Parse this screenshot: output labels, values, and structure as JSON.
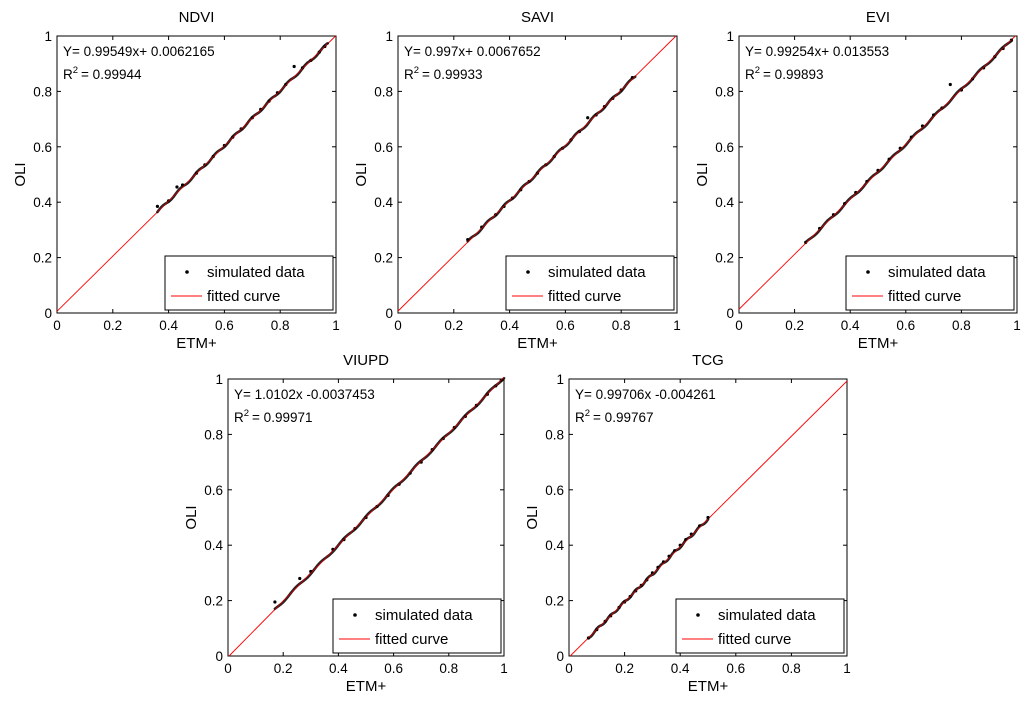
{
  "chart_data": [
    {
      "type": "scatter",
      "title": "NDVI",
      "xlabel": "ETM+",
      "ylabel": "OLI",
      "xlim": [
        0,
        1
      ],
      "ylim": [
        0,
        1
      ],
      "xticks": [
        "0",
        "0.2",
        "0.4",
        "0.6",
        "0.8",
        "1"
      ],
      "yticks": [
        "0",
        "0.2",
        "0.4",
        "0.6",
        "0.8",
        "1"
      ],
      "equation": "Y= 0.99549x+ 0.0062165",
      "r2_label": "R",
      "r2_exp": "2",
      "r2_value": "= 0.99944",
      "fit": {
        "slope": 0.99549,
        "intercept": 0.0062165
      },
      "data_range": [
        0.36,
        0.97
      ],
      "legend": {
        "position": "bottom-right",
        "entries": [
          "simulated data",
          "fitted curve"
        ]
      },
      "series": [
        {
          "name": "simulated data",
          "x": [
            0.36,
            0.4,
            0.43,
            0.45,
            0.5,
            0.53,
            0.56,
            0.6,
            0.63,
            0.66,
            0.7,
            0.73,
            0.76,
            0.79,
            0.82,
            0.85,
            0.88,
            0.91,
            0.94,
            0.96
          ],
          "y": [
            0.385,
            0.405,
            0.455,
            0.462,
            0.505,
            0.535,
            0.565,
            0.605,
            0.635,
            0.665,
            0.705,
            0.735,
            0.765,
            0.795,
            0.825,
            0.89,
            0.885,
            0.912,
            0.942,
            0.962
          ]
        }
      ]
    },
    {
      "type": "scatter",
      "title": "SAVI",
      "xlabel": "ETM+",
      "ylabel": "OLI",
      "xlim": [
        0,
        1
      ],
      "ylim": [
        0,
        1
      ],
      "xticks": [
        "0",
        "0.2",
        "0.4",
        "0.6",
        "0.8",
        "1"
      ],
      "yticks": [
        "0",
        "0.2",
        "0.4",
        "0.6",
        "0.8",
        "1"
      ],
      "equation": "Y= 0.997x+ 0.0067652",
      "r2_label": "R",
      "r2_exp": "2",
      "r2_value": "= 0.99933",
      "fit": {
        "slope": 0.997,
        "intercept": 0.0067652
      },
      "data_range": [
        0.25,
        0.85
      ],
      "legend": {
        "position": "bottom-right",
        "entries": [
          "simulated data",
          "fitted curve"
        ]
      },
      "series": [
        {
          "name": "simulated data",
          "x": [
            0.25,
            0.3,
            0.35,
            0.38,
            0.41,
            0.44,
            0.47,
            0.5,
            0.53,
            0.56,
            0.59,
            0.62,
            0.65,
            0.68,
            0.71,
            0.74,
            0.77,
            0.8,
            0.84
          ],
          "y": [
            0.265,
            0.31,
            0.355,
            0.385,
            0.415,
            0.445,
            0.475,
            0.505,
            0.535,
            0.565,
            0.595,
            0.625,
            0.655,
            0.705,
            0.715,
            0.745,
            0.775,
            0.805,
            0.85
          ]
        }
      ]
    },
    {
      "type": "scatter",
      "title": "EVI",
      "xlabel": "ETM+",
      "ylabel": "OLI",
      "xlim": [
        0,
        1
      ],
      "ylim": [
        0,
        1
      ],
      "xticks": [
        "0",
        "0.2",
        "0.4",
        "0.6",
        "0.8",
        "1"
      ],
      "yticks": [
        "0",
        "0.2",
        "0.4",
        "0.6",
        "0.8",
        "1"
      ],
      "equation": "Y= 0.99254x+ 0.013553",
      "r2_label": "R",
      "r2_exp": "2",
      "r2_value": "= 0.99893",
      "fit": {
        "slope": 0.99254,
        "intercept": 0.013553
      },
      "data_range": [
        0.24,
        0.98
      ],
      "legend": {
        "position": "bottom-right",
        "entries": [
          "simulated data",
          "fitted curve"
        ]
      },
      "series": [
        {
          "name": "simulated data",
          "x": [
            0.24,
            0.29,
            0.34,
            0.38,
            0.42,
            0.46,
            0.5,
            0.54,
            0.58,
            0.62,
            0.66,
            0.7,
            0.73,
            0.76,
            0.8,
            0.84,
            0.88,
            0.92,
            0.95,
            0.98
          ],
          "y": [
            0.255,
            0.305,
            0.355,
            0.395,
            0.435,
            0.475,
            0.515,
            0.555,
            0.595,
            0.635,
            0.675,
            0.715,
            0.74,
            0.825,
            0.805,
            0.845,
            0.885,
            0.925,
            0.955,
            0.985
          ]
        }
      ]
    },
    {
      "type": "scatter",
      "title": "VIUPD",
      "xlabel": "ETM+",
      "ylabel": "OLI",
      "xlim": [
        0,
        1
      ],
      "ylim": [
        0,
        1
      ],
      "xticks": [
        "0",
        "0.2",
        "0.4",
        "0.6",
        "0.8",
        "1"
      ],
      "yticks": [
        "0",
        "0.2",
        "0.4",
        "0.6",
        "0.8",
        "1"
      ],
      "equation": "Y= 1.0102x -0.0037453",
      "r2_label": "R",
      "r2_exp": "2",
      "r2_value": "= 0.99971",
      "fit": {
        "slope": 1.0102,
        "intercept": -0.0037453
      },
      "data_range": [
        0.17,
        1.0
      ],
      "legend": {
        "position": "bottom-right",
        "entries": [
          "simulated data",
          "fitted curve"
        ]
      },
      "series": [
        {
          "name": "simulated data",
          "x": [
            0.17,
            0.26,
            0.3,
            0.38,
            0.42,
            0.46,
            0.5,
            0.54,
            0.58,
            0.62,
            0.66,
            0.7,
            0.74,
            0.78,
            0.82,
            0.86,
            0.9,
            0.94,
            0.97,
            0.99
          ],
          "y": [
            0.195,
            0.28,
            0.305,
            0.385,
            0.42,
            0.46,
            0.5,
            0.54,
            0.58,
            0.62,
            0.66,
            0.7,
            0.745,
            0.785,
            0.825,
            0.865,
            0.905,
            0.945,
            0.975,
            0.995
          ]
        }
      ]
    },
    {
      "type": "scatter",
      "title": "TCG",
      "xlabel": "ETM+",
      "ylabel": "OLI",
      "xlim": [
        0,
        1
      ],
      "ylim": [
        0,
        1
      ],
      "xticks": [
        "0",
        "0.2",
        "0.4",
        "0.6",
        "0.8",
        "1"
      ],
      "yticks": [
        "0",
        "0.2",
        "0.4",
        "0.6",
        "0.8",
        "1"
      ],
      "equation": "Y= 0.99706x -0.004261",
      "r2_label": "R",
      "r2_exp": "2",
      "r2_value": "= 0.99767",
      "fit": {
        "slope": 0.99706,
        "intercept": -0.004261
      },
      "data_range": [
        0.07,
        0.5
      ],
      "legend": {
        "position": "bottom-right",
        "entries": [
          "simulated data",
          "fitted curve"
        ]
      },
      "series": [
        {
          "name": "simulated data",
          "x": [
            0.07,
            0.1,
            0.13,
            0.15,
            0.18,
            0.2,
            0.22,
            0.24,
            0.26,
            0.28,
            0.3,
            0.32,
            0.34,
            0.36,
            0.38,
            0.4,
            0.42,
            0.44,
            0.47,
            0.5
          ],
          "y": [
            0.065,
            0.095,
            0.125,
            0.145,
            0.175,
            0.195,
            0.215,
            0.235,
            0.255,
            0.275,
            0.3,
            0.32,
            0.34,
            0.36,
            0.38,
            0.4,
            0.42,
            0.44,
            0.47,
            0.5
          ]
        }
      ]
    }
  ]
}
